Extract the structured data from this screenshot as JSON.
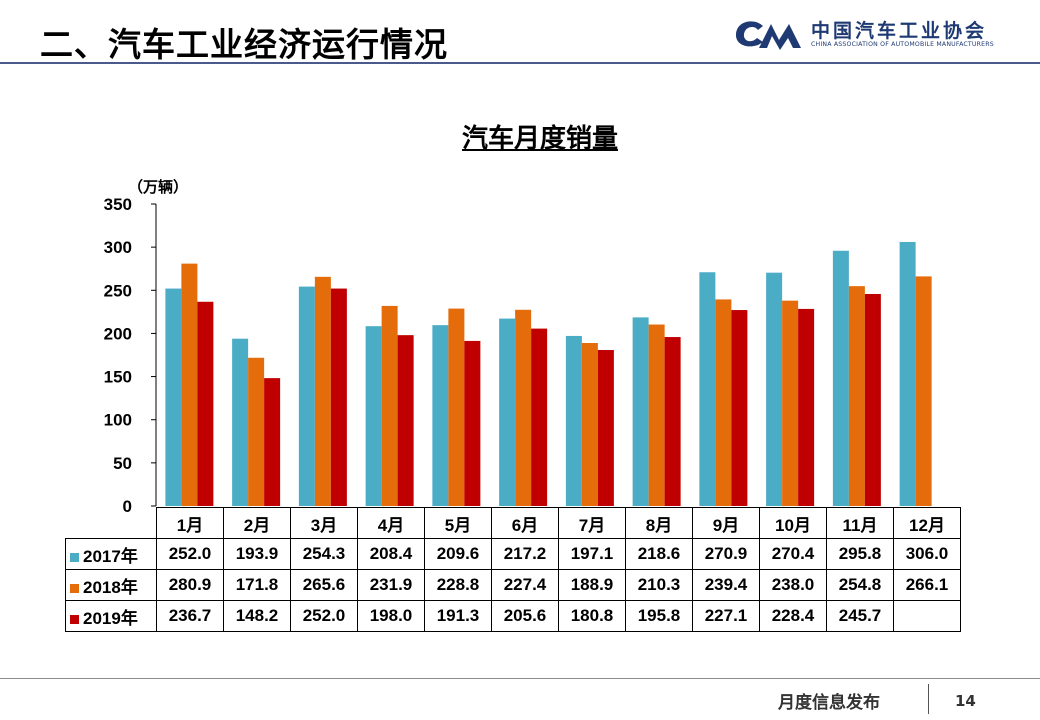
{
  "header": {
    "title": "二、汽车工业经济运行情况",
    "logo_cn": "中国汽车工业协会",
    "logo_en": "CHINA ASSOCIATION OF AUTOMOBILE MANUFACTURERS"
  },
  "chart_data": {
    "type": "bar",
    "title": "汽车月度销量",
    "ylabel": "（万辆）",
    "xlabel": "",
    "ylim": [
      0,
      350
    ],
    "yticks": [
      0,
      50,
      100,
      150,
      200,
      250,
      300,
      350
    ],
    "grid": false,
    "legend": "data-table-rows",
    "categories": [
      "1月",
      "2月",
      "3月",
      "4月",
      "5月",
      "6月",
      "7月",
      "8月",
      "9月",
      "10月",
      "11月",
      "12月"
    ],
    "series": [
      {
        "name": "2017年",
        "color": "#4bacc6",
        "values": [
          252.0,
          193.9,
          254.3,
          208.4,
          209.6,
          217.2,
          197.1,
          218.6,
          270.9,
          270.4,
          295.8,
          306.0
        ],
        "labels": [
          "252.0",
          "193.9",
          "254.3",
          "208.4",
          "209.6",
          "217.2",
          "197.1",
          "218.6",
          "270.9",
          "270.4",
          "295.8",
          "306.0"
        ]
      },
      {
        "name": "2018年",
        "color": "#e46c0a",
        "values": [
          280.9,
          171.8,
          265.6,
          231.9,
          228.8,
          227.4,
          188.9,
          210.3,
          239.4,
          238.0,
          254.8,
          266.1
        ],
        "labels": [
          "280.9",
          "171.8",
          "265.6",
          "231.9",
          "228.8",
          "227.4",
          "188.9",
          "210.3",
          "239.4",
          "238.0",
          "254.8",
          "266.1"
        ]
      },
      {
        "name": "2019年",
        "color": "#c00000",
        "values": [
          236.7,
          148.2,
          252.0,
          198.0,
          191.3,
          205.6,
          180.8,
          195.8,
          227.1,
          228.4,
          245.7,
          null
        ],
        "labels": [
          "236.7",
          "148.2",
          "252.0",
          "198.0",
          "191.3",
          "205.6",
          "180.8",
          "195.8",
          "227.1",
          "228.4",
          "245.7",
          ""
        ]
      }
    ]
  },
  "footer": {
    "text": "月度信息发布",
    "page": "14"
  }
}
